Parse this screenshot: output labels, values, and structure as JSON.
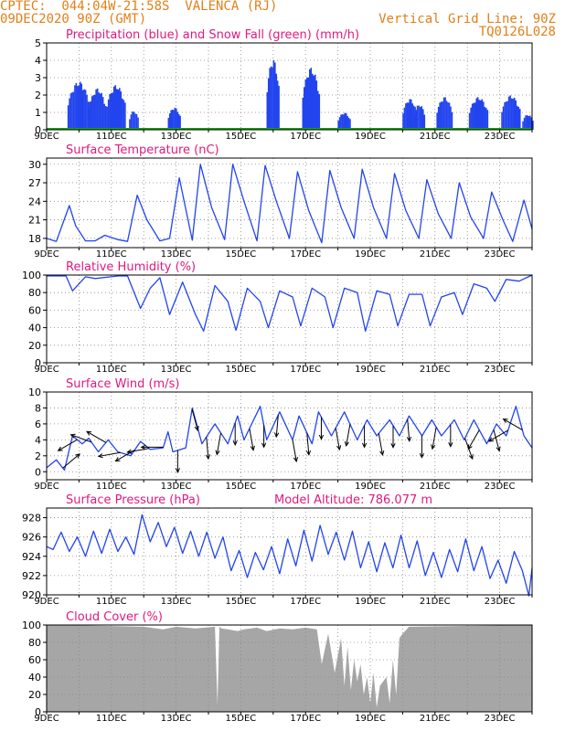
{
  "header": {
    "line1_left": "CPTEC:  044:04W-21:58S  VALENCA (RJ)",
    "line2_left": "09DEC2020 90Z (GMT)",
    "line2_right": "Vertical Grid Line: 90Z",
    "line3_right": "TQ0126L028"
  },
  "colors": {
    "header": "#e0801a",
    "title": "#e0197f",
    "series": "#2244ee",
    "snow": "#11aa11",
    "wind_arrow": "#000000",
    "cloud": "#a6a6a6"
  },
  "chart_data": [
    {
      "type": "bar",
      "title": "Precipitation (blue) and Snow Fall (green) (mm/h)",
      "ylim": [
        0,
        5
      ],
      "yticks": [
        0,
        1,
        2,
        3,
        4,
        5
      ],
      "xlim": [
        9,
        24
      ],
      "xticks": [
        "9DEC",
        "11DEC",
        "13DEC",
        "15DEC",
        "17DEC",
        "19DEC",
        "21DEC",
        "23DEC"
      ],
      "grid": true,
      "series": [
        {
          "name": "Precipitation",
          "bursts": [
            {
              "x": 9.65,
              "width": 0.7,
              "peak": 2.8
            },
            {
              "x": 10.3,
              "width": 0.55,
              "peak": 2.4
            },
            {
              "x": 10.85,
              "width": 0.6,
              "peak": 2.6
            },
            {
              "x": 11.55,
              "width": 0.3,
              "peak": 1.1
            },
            {
              "x": 12.75,
              "width": 0.4,
              "peak": 1.3
            },
            {
              "x": 15.8,
              "width": 0.4,
              "peak": 4.1
            },
            {
              "x": 16.9,
              "width": 0.55,
              "peak": 3.6
            },
            {
              "x": 18.0,
              "width": 0.4,
              "peak": 1.0
            },
            {
              "x": 20.0,
              "width": 0.45,
              "peak": 1.8
            },
            {
              "x": 20.35,
              "width": 0.35,
              "peak": 1.5
            },
            {
              "x": 21.05,
              "width": 0.5,
              "peak": 1.9
            },
            {
              "x": 22.05,
              "width": 0.6,
              "peak": 1.9
            },
            {
              "x": 23.05,
              "width": 0.6,
              "peak": 2.0
            },
            {
              "x": 23.7,
              "width": 0.35,
              "peak": 0.9
            }
          ]
        },
        {
          "name": "Snow Fall",
          "values": [
            0
          ]
        }
      ]
    },
    {
      "type": "line",
      "title": "Surface Temperature (nC)",
      "ylim": [
        16.5,
        31
      ],
      "yticks": [
        18,
        21,
        24,
        27,
        30
      ],
      "xlim": [
        9,
        24
      ],
      "xticks": [
        "9DEC",
        "11DEC",
        "13DEC",
        "15DEC",
        "17DEC",
        "19DEC",
        "21DEC",
        "23DEC"
      ],
      "x": [
        9,
        9.3,
        9.7,
        9.9,
        10.2,
        10.5,
        10.8,
        11.2,
        11.5,
        11.8,
        12.1,
        12.5,
        12.8,
        13.1,
        13.5,
        13.75,
        14.1,
        14.5,
        14.75,
        15.1,
        15.5,
        15.75,
        16.1,
        16.5,
        16.75,
        17.1,
        17.5,
        17.75,
        18.1,
        18.5,
        18.75,
        19.1,
        19.5,
        19.75,
        20.1,
        20.5,
        20.75,
        21.1,
        21.5,
        21.75,
        22.1,
        22.5,
        22.75,
        23.1,
        23.4,
        23.75,
        24
      ],
      "values": [
        18,
        17.5,
        23.3,
        20,
        17.6,
        17.6,
        18.5,
        17.8,
        17.5,
        25,
        21,
        17.6,
        18,
        27.8,
        17.7,
        30,
        23,
        17.8,
        30,
        24,
        17.6,
        29.8,
        24,
        18,
        28.8,
        22.5,
        17.3,
        29,
        23,
        18,
        29.2,
        23,
        18,
        28.5,
        22.5,
        18,
        27.5,
        22,
        18,
        27,
        21.5,
        18,
        25.5,
        21,
        17.5,
        24.2,
        19.5
      ]
    },
    {
      "type": "line",
      "title": "Relative Humidity (%)",
      "ylim": [
        0,
        100
      ],
      "yticks": [
        0,
        20,
        40,
        60,
        80,
        100
      ],
      "xlim": [
        9,
        24
      ],
      "xticks": [
        "9DEC",
        "11DEC",
        "13DEC",
        "15DEC",
        "17DEC",
        "19DEC",
        "21DEC",
        "23DEC"
      ],
      "x": [
        9,
        9.6,
        9.8,
        10.2,
        10.5,
        11.2,
        11.5,
        11.9,
        12.2,
        12.5,
        12.8,
        13.2,
        13.6,
        13.85,
        14.2,
        14.6,
        14.85,
        15.2,
        15.6,
        15.85,
        16.2,
        16.6,
        16.85,
        17.2,
        17.6,
        17.85,
        18.2,
        18.6,
        18.85,
        19.2,
        19.6,
        19.85,
        20.2,
        20.6,
        20.85,
        21.2,
        21.6,
        21.85,
        22.2,
        22.6,
        22.85,
        23.2,
        23.6,
        24
      ],
      "values": [
        99,
        99,
        82,
        98,
        96,
        99,
        99,
        62,
        85,
        97,
        55,
        92,
        55,
        36,
        88,
        70,
        37,
        85,
        70,
        40,
        82,
        75,
        42,
        85,
        75,
        40,
        85,
        80,
        36,
        82,
        78,
        42,
        78,
        78,
        42,
        75,
        80,
        55,
        90,
        85,
        70,
        95,
        93,
        100
      ]
    },
    {
      "type": "line",
      "title": "Surface Wind (m/s)",
      "ylim": [
        -1,
        10
      ],
      "yticks": [
        0,
        2,
        4,
        6,
        8,
        10
      ],
      "xlim": [
        9,
        24
      ],
      "xticks": [
        "9DEC",
        "11DEC",
        "13DEC",
        "15DEC",
        "17DEC",
        "19DEC",
        "21DEC",
        "23DEC"
      ],
      "x": [
        9,
        9.3,
        9.55,
        9.8,
        10.1,
        10.3,
        10.6,
        10.9,
        11.2,
        11.6,
        11.9,
        12.2,
        12.6,
        12.75,
        12.9,
        13.3,
        13.5,
        13.8,
        14.2,
        14.6,
        14.9,
        15.1,
        15.6,
        15.8,
        16.2,
        16.6,
        16.8,
        17.2,
        17.4,
        17.8,
        18.2,
        18.6,
        18.9,
        19.2,
        19.6,
        19.9,
        20.2,
        20.6,
        20.9,
        21.2,
        21.6,
        21.9,
        22.2,
        22.6,
        22.9,
        23.2,
        23.5,
        23.75,
        24
      ],
      "values": [
        0.5,
        1.5,
        0.2,
        4.5,
        3.5,
        4.2,
        2.5,
        4.0,
        2.5,
        2.0,
        3.8,
        2.8,
        3.0,
        5.0,
        2.5,
        3.0,
        8.0,
        3.5,
        6.0,
        3.5,
        7.0,
        4.0,
        8.2,
        4.0,
        7.5,
        4.0,
        7.0,
        3.5,
        7.5,
        4.5,
        7.5,
        4.0,
        6.5,
        4.5,
        6.5,
        4.5,
        7.0,
        4.5,
        6.5,
        4.5,
        6.5,
        4.0,
        6.5,
        3.5,
        6.0,
        4.5,
        8.2,
        4.5,
        3.0
      ],
      "arrow_direction_deg": [
        130,
        300,
        250,
        240,
        280,
        300,
        280,
        270,
        0,
        15,
        5,
        350,
        0,
        10,
        0,
        355,
        10,
        5,
        0,
        10,
        350,
        0,
        10,
        0,
        5,
        0,
        350,
        0,
        20,
        330,
        15,
        300,
        240
      ]
    },
    {
      "type": "line",
      "title": "Surface Pressure (hPa)",
      "annotation": "Model Altitude: 786.077 m",
      "ylim": [
        920,
        929
      ],
      "yticks": [
        920,
        922,
        924,
        926,
        928
      ],
      "xlim": [
        9,
        24
      ],
      "xticks": [
        "9DEC",
        "11DEC",
        "13DEC",
        "15DEC",
        "17DEC",
        "19DEC",
        "21DEC",
        "23DEC"
      ],
      "x": [
        9,
        9.2,
        9.45,
        9.7,
        9.95,
        10.2,
        10.45,
        10.7,
        10.95,
        11.2,
        11.45,
        11.7,
        11.95,
        12.2,
        12.45,
        12.7,
        12.95,
        13.2,
        13.45,
        13.7,
        13.95,
        14.2,
        14.45,
        14.7,
        14.95,
        15.2,
        15.45,
        15.7,
        15.95,
        16.2,
        16.45,
        16.7,
        16.95,
        17.2,
        17.45,
        17.7,
        17.95,
        18.2,
        18.45,
        18.7,
        18.95,
        19.2,
        19.45,
        19.7,
        19.95,
        20.2,
        20.45,
        20.7,
        20.95,
        21.2,
        21.45,
        21.7,
        21.95,
        22.2,
        22.45,
        22.7,
        22.95,
        23.2,
        23.45,
        23.7,
        23.9,
        24
      ],
      "values": [
        925,
        924.7,
        926.5,
        924.5,
        926,
        924,
        926.6,
        924.3,
        926.8,
        924.5,
        926,
        924.2,
        928.3,
        925.5,
        927.5,
        925,
        927,
        924.3,
        926.6,
        924,
        926.5,
        923.8,
        926,
        922.5,
        924.6,
        921.8,
        924.4,
        922.6,
        925,
        922.2,
        925.8,
        923,
        926.7,
        923.5,
        927.2,
        924.2,
        926.5,
        923.6,
        926.6,
        922.8,
        925.5,
        922.4,
        925.4,
        922.8,
        926.2,
        922.8,
        925.6,
        922,
        924.4,
        921.8,
        924.7,
        922.4,
        925.8,
        922.5,
        925,
        921.7,
        923.6,
        921.2,
        924.5,
        922.5,
        919.9,
        922.8
      ]
    },
    {
      "type": "area",
      "title": "Cloud Cover (%)",
      "ylim": [
        0,
        100
      ],
      "yticks": [
        0,
        20,
        40,
        60,
        80,
        100
      ],
      "xlim": [
        9,
        24
      ],
      "xticks": [
        "9DEC",
        "11DEC",
        "13DEC",
        "15DEC",
        "17DEC",
        "19DEC",
        "21DEC",
        "23DEC"
      ],
      "x": [
        9,
        9.5,
        12,
        12.6,
        13,
        13.6,
        14.2,
        14.28,
        14.34,
        14.4,
        14.6,
        14.9,
        15.1,
        15.5,
        15.8,
        16.2,
        16.6,
        17.0,
        17.35,
        17.5,
        17.7,
        17.9,
        18.1,
        18.2,
        18.3,
        18.4,
        18.5,
        18.6,
        18.7,
        18.8,
        18.9,
        19.0,
        19.1,
        19.2,
        19.3,
        19.5,
        19.6,
        19.7,
        19.8,
        19.9,
        20.0,
        20.2,
        24
      ],
      "values": [
        100,
        100,
        98,
        95,
        98,
        96,
        98,
        8,
        98,
        96,
        95,
        93,
        95,
        97,
        93,
        96,
        95,
        97,
        95,
        55,
        90,
        45,
        85,
        30,
        75,
        25,
        60,
        35,
        55,
        20,
        40,
        10,
        45,
        5,
        30,
        40,
        10,
        60,
        20,
        85,
        90,
        98,
        100
      ]
    }
  ]
}
